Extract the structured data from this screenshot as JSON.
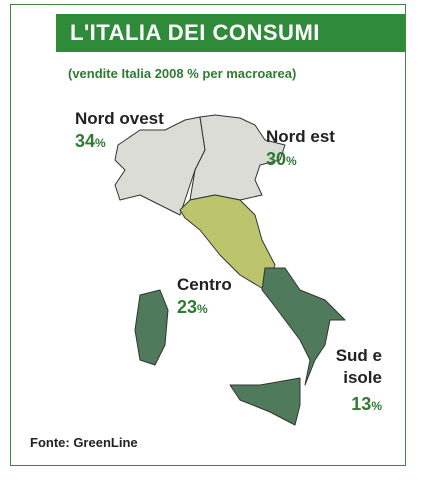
{
  "header": {
    "title": "L'ITALIA DEI CONSUMI",
    "subtitle": "(vendite Italia 2008 % per macroarea)"
  },
  "unit": "%",
  "regions": [
    {
      "name": "Nord ovest",
      "value": 34,
      "color": "#dadcd5"
    },
    {
      "name": "Nord est",
      "value": 30,
      "color": "#dadcd5"
    },
    {
      "name": "Centro",
      "value": 23,
      "color": "#bcc56c"
    },
    {
      "name": "Sud e isole",
      "value": 13,
      "color": "#4f7b5c"
    }
  ],
  "source": "Fonte: GreenLine"
}
